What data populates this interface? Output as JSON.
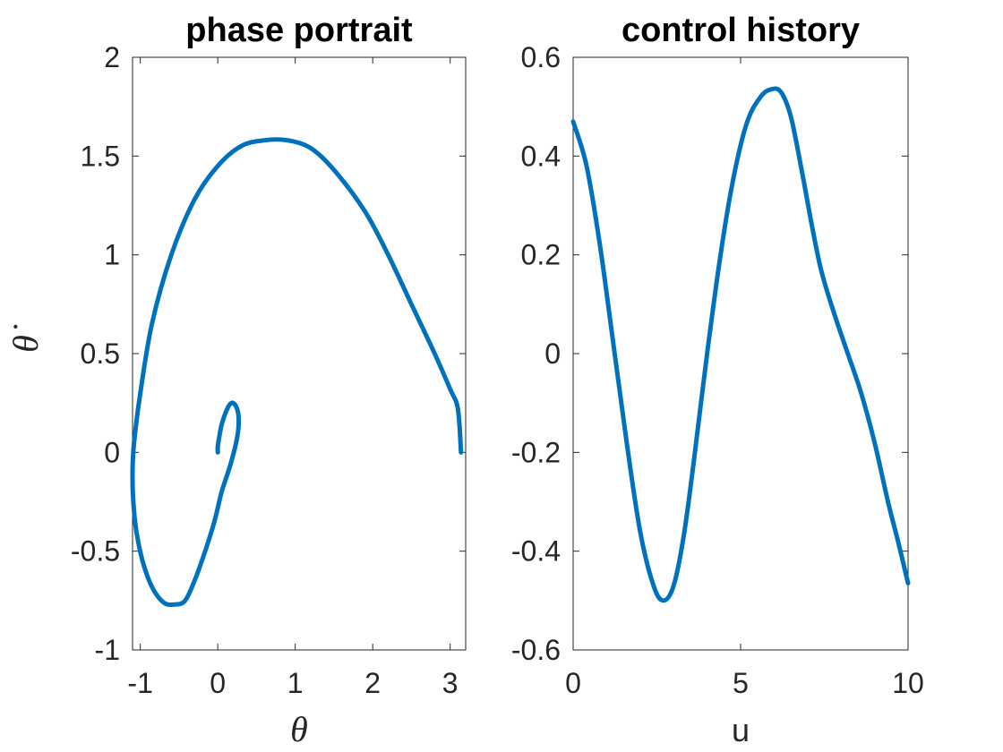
{
  "chart_data": [
    {
      "type": "line",
      "title": "phase portrait",
      "xlabel": "θ",
      "ylabel": "θ̇",
      "xlim": [
        -1.1,
        3.2
      ],
      "ylim": [
        -1,
        2
      ],
      "xticks": [
        -1,
        0,
        1,
        2,
        3
      ],
      "yticks": [
        -1,
        -0.5,
        0,
        0.5,
        1,
        1.5,
        2
      ],
      "xtick_labels": [
        "-1",
        "0",
        "1",
        "2",
        "3"
      ],
      "ytick_labels": [
        "-1",
        "-0.5",
        "0",
        "0.5",
        "1",
        "1.5",
        "2"
      ],
      "grid": false,
      "series": [
        {
          "color": "#0072BD",
          "x": [
            3.14,
            3.1,
            3.0,
            2.8,
            2.5,
            2.2,
            1.9,
            1.5,
            1.2,
            0.9,
            0.6,
            0.3,
            0.0,
            -0.3,
            -0.6,
            -0.85,
            -1.0,
            -1.08,
            -1.1,
            -1.09,
            -1.05,
            -0.97,
            -0.85,
            -0.7,
            -0.55,
            -0.42,
            -0.3,
            -0.18,
            -0.05,
            0.05,
            0.15,
            0.22,
            0.26,
            0.27,
            0.25,
            0.2,
            0.15,
            0.1,
            0.05,
            0.02,
            0.0,
            0.0
          ],
          "y": [
            0.0,
            0.22,
            0.32,
            0.5,
            0.75,
            1.0,
            1.22,
            1.43,
            1.54,
            1.58,
            1.58,
            1.55,
            1.45,
            1.28,
            1.0,
            0.65,
            0.3,
            0.05,
            -0.1,
            -0.25,
            -0.4,
            -0.55,
            -0.68,
            -0.76,
            -0.77,
            -0.75,
            -0.65,
            -0.52,
            -0.36,
            -0.2,
            -0.08,
            0.02,
            0.1,
            0.17,
            0.22,
            0.25,
            0.24,
            0.2,
            0.14,
            0.08,
            0.03,
            0.0
          ]
        }
      ]
    },
    {
      "type": "line",
      "title": "control history",
      "xlabel": "u",
      "ylabel": "",
      "xlim": [
        0,
        10
      ],
      "ylim": [
        -0.6,
        0.6
      ],
      "xticks": [
        0,
        5,
        10
      ],
      "yticks": [
        -0.6,
        -0.4,
        -0.2,
        0,
        0.2,
        0.4,
        0.6
      ],
      "xtick_labels": [
        "0",
        "5",
        "10"
      ],
      "ytick_labels": [
        "-0.6",
        "-0.4",
        "-0.2",
        "0",
        "0.2",
        "0.4",
        "0.6"
      ],
      "grid": false,
      "series": [
        {
          "color": "#0072BD",
          "x": [
            0.0,
            0.4,
            0.8,
            1.2,
            1.6,
            2.0,
            2.4,
            2.7,
            3.0,
            3.3,
            3.6,
            4.0,
            4.4,
            4.8,
            5.2,
            5.6,
            5.9,
            6.2,
            6.5,
            6.8,
            7.1,
            7.4,
            7.8,
            8.2,
            8.6,
            9.0,
            9.4,
            9.7,
            10.0
          ],
          "y": [
            0.47,
            0.38,
            0.22,
            0.02,
            -0.18,
            -0.36,
            -0.47,
            -0.5,
            -0.47,
            -0.37,
            -0.22,
            0.0,
            0.2,
            0.36,
            0.47,
            0.52,
            0.535,
            0.53,
            0.48,
            0.38,
            0.27,
            0.17,
            0.08,
            0.0,
            -0.08,
            -0.18,
            -0.3,
            -0.38,
            -0.465
          ]
        }
      ]
    }
  ]
}
